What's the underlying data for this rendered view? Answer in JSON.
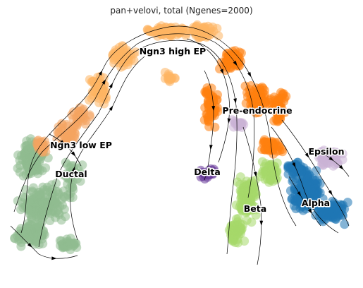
{
  "chart_data": {
    "type": "scatter",
    "title": "pan+velovi, total (Ngenes=2000)",
    "xlabel": "",
    "ylabel": "",
    "grid": false,
    "legend": "on data",
    "clusters": [
      {
        "name": "Ductal",
        "color": "#8fbc8f"
      },
      {
        "name": "Ngn3 low EP",
        "color": "#f4a460"
      },
      {
        "name": "Ngn3 high EP",
        "color": "#fdb462"
      },
      {
        "name": "Pre-endocrine",
        "color": "#ff7f0e"
      },
      {
        "name": "Beta",
        "color": "#a6d96a"
      },
      {
        "name": "Alpha",
        "color": "#1f77b4"
      },
      {
        "name": "Delta",
        "color": "#6a3d9a"
      },
      {
        "name": "Epsilon",
        "color": "#cab2d6"
      }
    ],
    "streamlines": "velocity stream arrows"
  }
}
